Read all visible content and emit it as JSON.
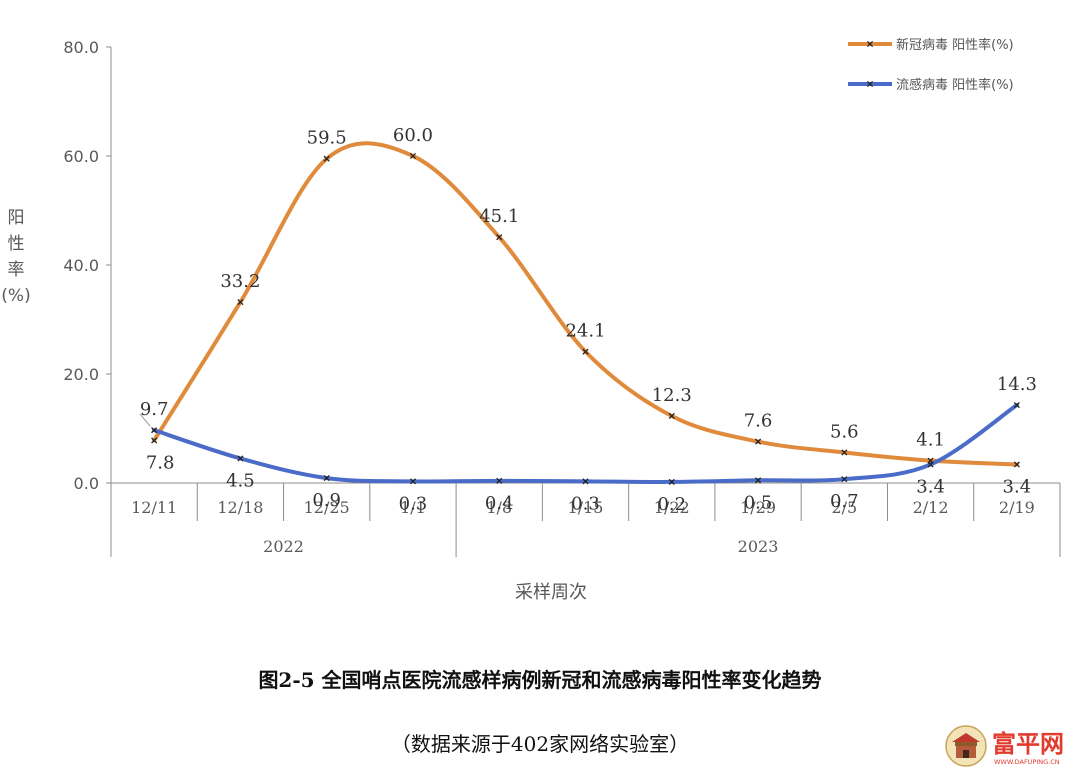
{
  "chart_data": {
    "type": "line",
    "categories": [
      "12/11",
      "12/18",
      "12/25",
      "1/1",
      "1/8",
      "1/15",
      "1/22",
      "1/29",
      "2/5",
      "2/12",
      "2/19"
    ],
    "year_groups": [
      {
        "label": "2022",
        "start": 0,
        "end": 3
      },
      {
        "label": "2023",
        "start": 4,
        "end": 10
      }
    ],
    "series": [
      {
        "name": "新冠病毒 阳性率(%)",
        "color": "#E08A3C",
        "values": [
          7.8,
          33.2,
          59.5,
          60.0,
          45.1,
          24.1,
          12.3,
          7.6,
          5.6,
          4.1,
          3.4
        ]
      },
      {
        "name": "流感病毒 阳性率(%)",
        "color": "#4A6CC8",
        "values": [
          9.7,
          4.5,
          0.9,
          0.3,
          0.4,
          0.3,
          0.2,
          0.5,
          0.7,
          3.4,
          14.3
        ]
      }
    ],
    "data_labels": [
      [
        "7.8",
        "33.2",
        "59.5",
        "60.0",
        "45.1",
        "24.1",
        "12.3",
        "7.6",
        "5.6",
        "4.1",
        "3.4"
      ],
      [
        "9.7",
        "4.5",
        "0.9",
        "0.3",
        "0.4",
        "0.3",
        "0.2",
        "0.5",
        "0.7",
        "3.4",
        "14.3"
      ]
    ],
    "yticks": [
      "0.0",
      "20.0",
      "40.0",
      "60.0",
      "80.0"
    ],
    "ylim": [
      0,
      80
    ],
    "ylabel": "阳性率(%)",
    "xlabel": "采样周次",
    "grid": false,
    "legend_position": "top-right"
  },
  "caption": {
    "title": "图2-5 全国哨点医院流感样病例新冠和流感病毒阳性率变化趋势",
    "source": "（数据来源于402家网络实验室）"
  },
  "watermark": {
    "text": "富平网",
    "subtext": "WWW.DAFUPING.CN",
    "color": "#E23B2E"
  }
}
